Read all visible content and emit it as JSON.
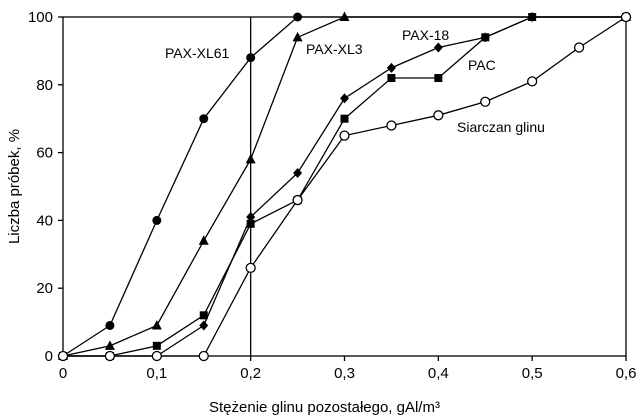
{
  "chart_data": {
    "type": "line",
    "xlabel": "Stężenie glinu pozostałego, gAl/m³",
    "ylabel": "Liczba próbek, %",
    "xlim": [
      0,
      0.6
    ],
    "ylim": [
      0,
      100
    ],
    "x_ticks": [
      "0",
      "0,1",
      "0,2",
      "0,3",
      "0,4",
      "0,5",
      "0,6"
    ],
    "y_ticks": [
      "0",
      "20",
      "40",
      "60",
      "80",
      "100"
    ],
    "grid": false,
    "reference_line_x": 0.2,
    "series": [
      {
        "name": "PAX-XL61",
        "marker": "circle-filled",
        "x": [
          0,
          0.05,
          0.1,
          0.15,
          0.2,
          0.25,
          0.6
        ],
        "y": [
          0,
          9,
          40,
          70,
          88,
          100,
          100
        ]
      },
      {
        "name": "PAX-XL3",
        "marker": "triangle-filled",
        "x": [
          0,
          0.05,
          0.1,
          0.15,
          0.2,
          0.25,
          0.3,
          0.6
        ],
        "y": [
          0,
          3,
          9,
          34,
          58,
          94,
          100,
          100
        ]
      },
      {
        "name": "PAX-18",
        "marker": "diamond-filled",
        "x": [
          0,
          0.05,
          0.1,
          0.15,
          0.2,
          0.25,
          0.3,
          0.35,
          0.4,
          0.45,
          0.5,
          0.6
        ],
        "y": [
          0,
          0,
          0,
          9,
          41,
          54,
          76,
          85,
          91,
          94,
          100,
          100
        ]
      },
      {
        "name": "PAC",
        "marker": "square-filled",
        "x": [
          0,
          0.05,
          0.1,
          0.15,
          0.2,
          0.25,
          0.3,
          0.35,
          0.4,
          0.45,
          0.5,
          0.6
        ],
        "y": [
          0,
          0,
          3,
          12,
          39,
          46,
          70,
          82,
          82,
          94,
          100,
          100
        ]
      },
      {
        "name": "Siarczan glinu",
        "marker": "circle-open",
        "x": [
          0,
          0.05,
          0.1,
          0.15,
          0.2,
          0.25,
          0.3,
          0.35,
          0.4,
          0.45,
          0.5,
          0.55,
          0.6
        ],
        "y": [
          0,
          0,
          0,
          0,
          26,
          46,
          65,
          68,
          71,
          75,
          81,
          91,
          100
        ]
      }
    ]
  }
}
